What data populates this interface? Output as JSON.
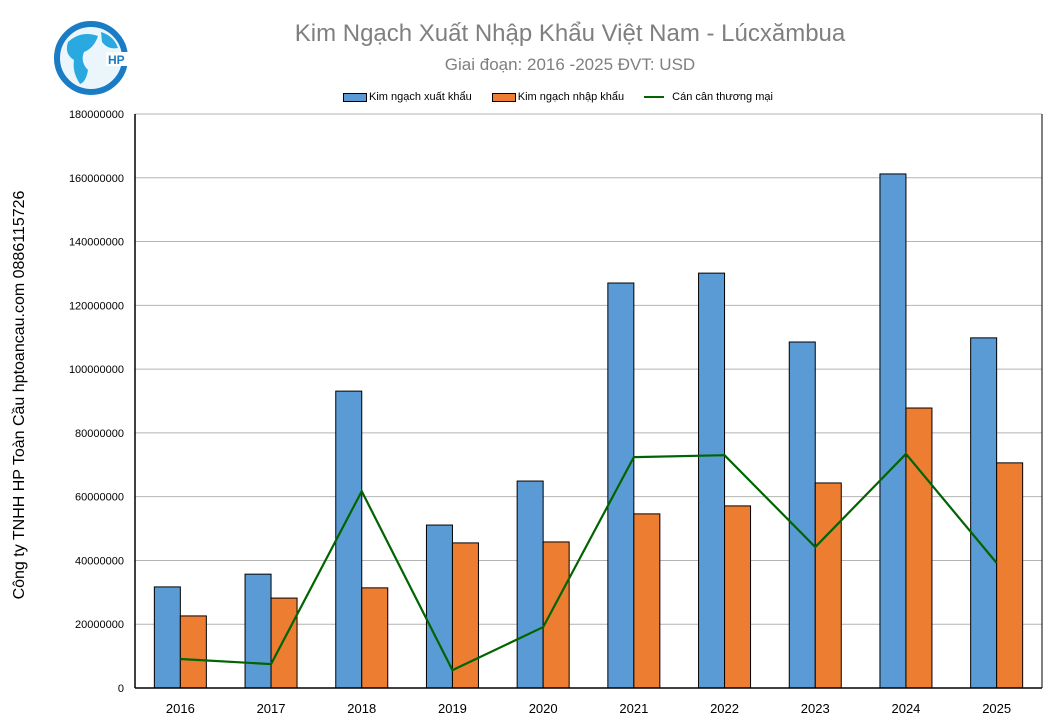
{
  "title": "Kim Ngạch Xuất Nhập Khẩu Việt Nam - Lúcxămbua",
  "subtitle": "Giai đoạn: 2016 -2025  ĐVT: USD",
  "side_label": "Công ty TNHH HP Toàn Cầu hptoancau.com 0886115726",
  "logo_text": "HP",
  "chart_data": {
    "type": "bar",
    "categories": [
      "2016",
      "2017",
      "2018",
      "2019",
      "2020",
      "2021",
      "2022",
      "2023",
      "2024",
      "2025"
    ],
    "series": [
      {
        "name": "Kim ngạch xuất khẩu",
        "type": "bar",
        "color": "#5b9bd5",
        "values": [
          31700000,
          35700000,
          93100000,
          51100000,
          64900000,
          127000000,
          130100000,
          108500000,
          161200000,
          109800000
        ]
      },
      {
        "name": "Kim ngạch nhập khẩu",
        "type": "bar",
        "color": "#ed7d31",
        "values": [
          22600000,
          28200000,
          31400000,
          45500000,
          45800000,
          54600000,
          57100000,
          64300000,
          87800000,
          70600000
        ]
      },
      {
        "name": "Cán cân thương mại",
        "type": "line",
        "color": "#006400",
        "values": [
          9100000,
          7500000,
          61700000,
          5600000,
          19100000,
          72400000,
          73000000,
          44200000,
          73400000,
          39200000
        ]
      }
    ],
    "ylim": [
      0,
      180000000
    ],
    "yticks": [
      "0",
      "20000000",
      "40000000",
      "60000000",
      "80000000",
      "100000000",
      "120000000",
      "140000000",
      "160000000",
      "180000000"
    ],
    "grid": true,
    "legend": "top"
  }
}
